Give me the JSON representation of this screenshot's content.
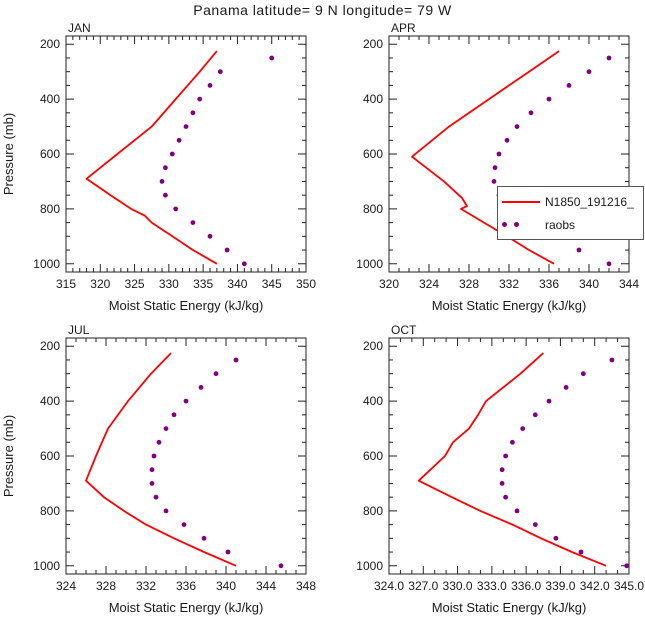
{
  "title": "Panama  latitude= 9 N longitude= 79 W",
  "xlabel": "Moist Static Energy (kJ/kg)",
  "ylabel": "Pressure (mb)",
  "colors": {
    "model": "#ff0000",
    "obs": "#800080",
    "axis": "#222222",
    "text": "#1a1a1a"
  },
  "legend": {
    "entries": [
      {
        "label": "N1850_191216_",
        "type": "line",
        "color": "#ff0000"
      },
      {
        "label": "raobs",
        "type": "dots",
        "color": "#800080"
      }
    ]
  },
  "chart_data": [
    {
      "type": "line",
      "panel": "JAN",
      "xlabel": "Moist Static Energy (kJ/kg)",
      "ylabel": "Pressure (mb)",
      "xlim": [
        315,
        350
      ],
      "xticks": [
        315,
        320,
        325,
        330,
        335,
        340,
        345,
        350
      ],
      "xtick_labels": [
        "315",
        "320",
        "325",
        "330",
        "335",
        "340",
        "345",
        "350"
      ],
      "xminor_step": 1,
      "ylim": [
        200,
        1000
      ],
      "y_inverted": true,
      "ydisplay": [
        170,
        1030
      ],
      "yticks": [
        200,
        400,
        600,
        800,
        1000
      ],
      "yminor_step": 50,
      "series": [
        {
          "name": "N1850_191216_",
          "type": "line",
          "color": "#ff0000",
          "pressure": [
            225,
            300,
            400,
            500,
            600,
            690,
            750,
            800,
            825,
            850,
            900,
            950,
            1000
          ],
          "mse": [
            337,
            334.5,
            331,
            327.5,
            322.5,
            318,
            321.5,
            324.5,
            326.5,
            327.5,
            330.5,
            333.5,
            337
          ]
        },
        {
          "name": "raobs",
          "type": "scatter",
          "color": "#800080",
          "pressure": [
            250,
            300,
            350,
            400,
            450,
            500,
            550,
            600,
            650,
            700,
            750,
            800,
            850,
            900,
            950,
            1000
          ],
          "mse": [
            345,
            337.5,
            336,
            334.5,
            333.5,
            332.5,
            331.5,
            330.5,
            329.5,
            329,
            329.5,
            331,
            333.5,
            336,
            338.5,
            341
          ]
        }
      ]
    },
    {
      "type": "line",
      "panel": "APR",
      "xlabel": "Moist Static Energy (kJ/kg)",
      "ylabel": "Pressure (mb)",
      "xlim": [
        320,
        344
      ],
      "xticks": [
        320,
        324,
        328,
        332,
        336,
        340,
        344
      ],
      "xtick_labels": [
        "320",
        "324",
        "328",
        "332",
        "336",
        "340",
        "344"
      ],
      "xminor_step": 1,
      "ylim": [
        200,
        1000
      ],
      "y_inverted": true,
      "ydisplay": [
        170,
        1030
      ],
      "yticks": [
        200,
        400,
        600,
        800,
        1000
      ],
      "yminor_step": 50,
      "series": [
        {
          "name": "N1850_191216_",
          "type": "line",
          "color": "#ff0000",
          "pressure": [
            225,
            300,
            400,
            500,
            610,
            700,
            760,
            790,
            800,
            850,
            900,
            950,
            1000
          ],
          "mse": [
            337,
            334,
            330,
            326,
            322.3,
            325.5,
            327.3,
            327.8,
            327.2,
            329.5,
            331.8,
            334,
            336.5
          ]
        },
        {
          "name": "raobs",
          "type": "scatter",
          "color": "#800080",
          "pressure": [
            250,
            300,
            350,
            400,
            450,
            500,
            550,
            600,
            650,
            700,
            750,
            800,
            850,
            900,
            950,
            1000
          ],
          "mse": [
            342,
            340,
            338,
            336,
            334.2,
            332.8,
            331.8,
            331,
            330.6,
            330.5,
            331,
            332,
            333.8,
            336,
            339,
            342
          ]
        }
      ]
    },
    {
      "type": "line",
      "panel": "JUL",
      "xlabel": "Moist Static Energy (kJ/kg)",
      "ylabel": "Pressure (mb)",
      "xlim": [
        324,
        348
      ],
      "xticks": [
        324,
        328,
        332,
        336,
        340,
        344,
        348
      ],
      "xtick_labels": [
        "324",
        "328",
        "332",
        "336",
        "340",
        "344",
        "348"
      ],
      "xminor_step": 1,
      "ylim": [
        200,
        1000
      ],
      "y_inverted": true,
      "ydisplay": [
        170,
        1030
      ],
      "yticks": [
        200,
        400,
        600,
        800,
        1000
      ],
      "yminor_step": 50,
      "series": [
        {
          "name": "N1850_191216_",
          "type": "line",
          "color": "#ff0000",
          "pressure": [
            225,
            300,
            400,
            500,
            600,
            690,
            750,
            800,
            850,
            900,
            950,
            1000
          ],
          "mse": [
            334.5,
            332.5,
            330.2,
            328.2,
            327,
            326,
            327.8,
            329.8,
            332,
            334.8,
            337.8,
            341
          ]
        },
        {
          "name": "raobs",
          "type": "scatter",
          "color": "#800080",
          "pressure": [
            250,
            300,
            350,
            400,
            450,
            500,
            550,
            600,
            650,
            700,
            750,
            800,
            850,
            900,
            950,
            1000
          ],
          "mse": [
            341,
            339,
            337.5,
            336,
            334.8,
            334,
            333.3,
            332.8,
            332.6,
            332.6,
            333,
            334,
            335.8,
            337.8,
            340.2,
            345.5
          ]
        }
      ]
    },
    {
      "type": "line",
      "panel": "OCT",
      "xlabel": "Moist Static Energy (kJ/kg)",
      "ylabel": "Pressure (mb)",
      "xlim": [
        324,
        345
      ],
      "xticks": [
        324,
        327,
        330,
        333,
        336,
        339,
        342,
        345
      ],
      "xtick_labels": [
        "324.0",
        "327.0",
        "330.0",
        "333.0",
        "336.0",
        "339.0",
        "342.0",
        "345.0"
      ],
      "xminor_step": 1,
      "ylim": [
        200,
        1000
      ],
      "y_inverted": true,
      "ydisplay": [
        170,
        1030
      ],
      "yticks": [
        200,
        400,
        600,
        800,
        1000
      ],
      "yminor_step": 50,
      "series": [
        {
          "name": "N1850_191216_",
          "type": "line",
          "color": "#ff0000",
          "pressure": [
            225,
            300,
            400,
            450,
            500,
            550,
            600,
            690,
            750,
            800,
            850,
            900,
            950,
            1000
          ],
          "mse": [
            337.5,
            335.5,
            332.5,
            331.8,
            331,
            329.6,
            328.9,
            326.6,
            329.5,
            332,
            334.8,
            337.3,
            340,
            343
          ]
        },
        {
          "name": "raobs",
          "type": "scatter",
          "color": "#800080",
          "pressure": [
            250,
            300,
            350,
            400,
            450,
            500,
            550,
            600,
            650,
            700,
            750,
            800,
            850,
            900,
            950,
            1000
          ],
          "mse": [
            343.5,
            341,
            339.5,
            338,
            336.8,
            335.7,
            334.8,
            334.2,
            333.9,
            333.9,
            334.2,
            335.2,
            336.8,
            338.6,
            340.8,
            344.8
          ]
        }
      ]
    }
  ]
}
